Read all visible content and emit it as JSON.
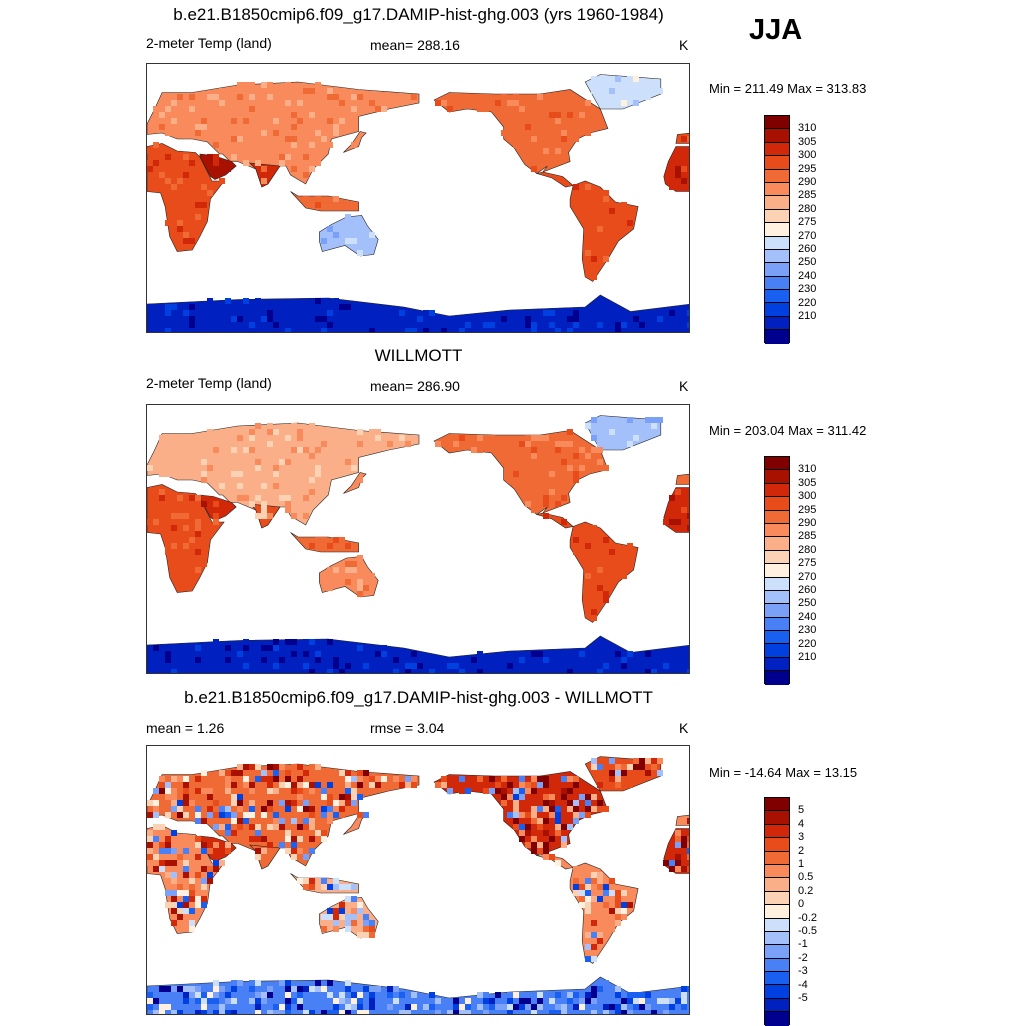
{
  "season": "JJA",
  "palettes": {
    "temp": [
      "#00008f",
      "#0020c0",
      "#0040e0",
      "#1a60f0",
      "#4a80f5",
      "#7aa0f8",
      "#a4c0fa",
      "#cce0fb",
      "#fff0e0",
      "#fcd2b4",
      "#fbaf88",
      "#f88a5c",
      "#f06a35",
      "#e84c1a",
      "#d02808",
      "#a81000",
      "#800000"
    ],
    "diff": [
      "#00008f",
      "#0020c0",
      "#0040e0",
      "#1a60f0",
      "#4a80f5",
      "#7aa0f8",
      "#a4c0fa",
      "#cce0fb",
      "#fff0e0",
      "#fcd2b4",
      "#fbaf88",
      "#f88a5c",
      "#f06a35",
      "#e84c1a",
      "#d02808",
      "#a81000",
      "#800000"
    ]
  },
  "panels": [
    {
      "title": "b.e21.B1850cmip6.f09_g17.DAMIP-hist-ghg.003 (yrs 1960-1984)",
      "left_label": "2-meter Temp (land)",
      "center_label": "mean= 288.16",
      "units": "K",
      "minmax": "Min = 211.49 Max = 313.83",
      "colorbar_labels": [
        "310",
        "305",
        "300",
        "295",
        "290",
        "285",
        "280",
        "275",
        "270",
        "260",
        "250",
        "240",
        "230",
        "220",
        "210"
      ],
      "palette": "temp",
      "style": "model"
    },
    {
      "title": "WILLMOTT",
      "left_label": "2-meter Temp (land)",
      "center_label": "mean= 286.90",
      "units": "K",
      "minmax": "Min = 203.04 Max = 311.42",
      "colorbar_labels": [
        "310",
        "305",
        "300",
        "295",
        "290",
        "285",
        "280",
        "275",
        "270",
        "260",
        "250",
        "240",
        "230",
        "220",
        "210"
      ],
      "palette": "temp",
      "style": "obs"
    },
    {
      "title": "b.e21.B1850cmip6.f09_g17.DAMIP-hist-ghg.003 - WILLMOTT",
      "left_label": "mean =   1.26",
      "center_label": "rmse =   3.04",
      "units": "K",
      "minmax": "Min = -14.64 Max =  13.15",
      "colorbar_labels": [
        "5",
        "4",
        "3",
        "2",
        "1",
        "0.5",
        "0.2",
        "0",
        "-0.2",
        "-0.5",
        "-1",
        "-2",
        "-3",
        "-4",
        "-5"
      ],
      "palette": "diff",
      "style": "diff"
    }
  ]
}
